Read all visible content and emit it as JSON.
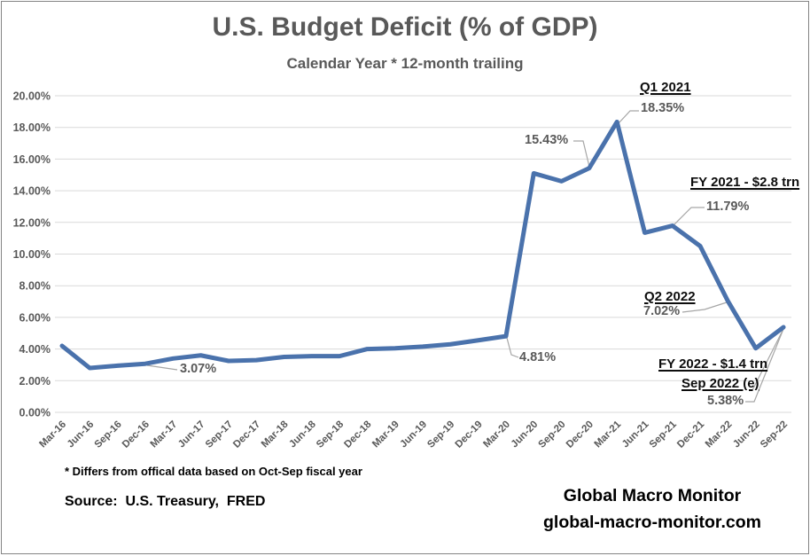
{
  "header": {
    "title": "U.S. Budget Deficit (% of GDP)",
    "subtitle": "Calendar Year * 12-month trailing"
  },
  "chart_data": {
    "type": "line",
    "title": "U.S. Budget Deficit (% of GDP)",
    "subtitle": "Calendar Year * 12-month trailing",
    "categories": [
      "Mar-16",
      "Jun-16",
      "Sep-16",
      "Dec-16",
      "Mar-17",
      "Jun-17",
      "Sep-17",
      "Dec-17",
      "Mar-18",
      "Jun-18",
      "Sep-18",
      "Dec-18",
      "Mar-19",
      "Jun-19",
      "Sep-19",
      "Dec-19",
      "Mar-20",
      "Jun-20",
      "Sep-20",
      "Dec-20",
      "Mar-21",
      "Jun-21",
      "Sep-21",
      "Dec-21",
      "Mar-22",
      "Jun-22",
      "Sep-22"
    ],
    "values": [
      4.2,
      2.8,
      2.95,
      3.07,
      3.4,
      3.6,
      3.25,
      3.3,
      3.5,
      3.55,
      3.55,
      4.0,
      4.05,
      4.15,
      4.3,
      4.55,
      4.81,
      15.1,
      14.6,
      15.43,
      18.35,
      11.35,
      11.79,
      10.5,
      7.02,
      4.05,
      5.38
    ],
    "ylim": [
      0,
      20
    ],
    "ytick_step": 2,
    "ytick_format": "percent-2dp",
    "grid": "horizontal",
    "legend": "none",
    "line_color": "#4A72AC",
    "gridline_color": "#D9D9D9",
    "axis_text_color": "#595959",
    "leader_line_color": "#A6A6A6",
    "annotations": [
      {
        "text": "3.07%",
        "point": "Dec-16",
        "style": "value"
      },
      {
        "text": "4.81%",
        "point": "Mar-20",
        "style": "value"
      },
      {
        "text": "15.43%",
        "point": "Dec-20",
        "style": "value"
      },
      {
        "text": "Q1 2021",
        "point": "Mar-21",
        "style": "callout"
      },
      {
        "text": "18.35%",
        "point": "Mar-21",
        "style": "value"
      },
      {
        "text": "FY 2021 - $2.8 trn",
        "point": null,
        "style": "callout"
      },
      {
        "text": "11.79%",
        "point": "Sep-21",
        "style": "value"
      },
      {
        "text": "Q2 2022",
        "point": "Mar-22",
        "style": "callout"
      },
      {
        "text": "7.02%",
        "point": "Mar-22",
        "style": "value"
      },
      {
        "text": "FY 2022 - $1.4 trn",
        "point": null,
        "style": "callout"
      },
      {
        "text": "Sep 2022 (e)",
        "point": "Sep-22",
        "style": "callout"
      },
      {
        "text": "5.38%",
        "point": "Sep-22",
        "style": "value"
      }
    ]
  },
  "footer": {
    "footnote": "* Differs from offical data based on Oct-Sep fiscal year",
    "source": "Source:  U.S. Treasury,  FRED",
    "brand_name": "Global Macro Monitor",
    "brand_url": "global-macro-monitor.com"
  }
}
